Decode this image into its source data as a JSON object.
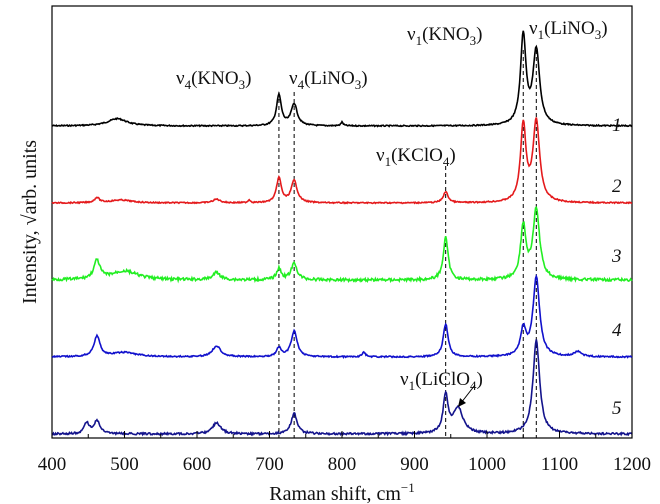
{
  "chart_data": {
    "type": "line",
    "xlabel": "Raman shift, cm",
    "xlabel_sup": "−1",
    "ylabel": "Intensity, √arb. units",
    "xlim": [
      400,
      1200
    ],
    "x_ticks": [
      400,
      500,
      600,
      700,
      800,
      900,
      1000,
      1100,
      1200
    ],
    "y_ticks": "none",
    "grid": false,
    "legend": "none",
    "reference_lines_x": [
      713,
      734,
      943,
      1050,
      1068
    ],
    "series": [
      {
        "name": "1",
        "color": "#000000",
        "offset": 4,
        "amp": 0.95,
        "wig": 0.6,
        "peaks": [
          [
            490,
            0.1,
            16
          ],
          [
            713,
            0.42,
            4
          ],
          [
            734,
            0.3,
            5
          ],
          [
            800,
            0.05,
            2
          ],
          [
            1050,
            1.22,
            4.5
          ],
          [
            1068,
            1.02,
            5.5
          ]
        ]
      },
      {
        "name": "2",
        "color": "#e41a1c",
        "offset": 3,
        "amp": 0.95,
        "wig": 0.6,
        "peaks": [
          [
            462,
            0.07,
            4
          ],
          [
            495,
            0.04,
            18
          ],
          [
            627,
            0.05,
            6
          ],
          [
            672,
            0.04,
            2
          ],
          [
            713,
            0.34,
            4
          ],
          [
            734,
            0.3,
            5
          ],
          [
            943,
            0.15,
            4
          ],
          [
            1050,
            1.05,
            4.5
          ],
          [
            1068,
            1.1,
            5.5
          ]
        ]
      },
      {
        "name": "3",
        "color": "#22ee22",
        "offset": 2,
        "amp": 0.95,
        "wig": 1.4,
        "peaks": [
          [
            462,
            0.25,
            5
          ],
          [
            500,
            0.12,
            22
          ],
          [
            627,
            0.1,
            6
          ],
          [
            713,
            0.15,
            4
          ],
          [
            734,
            0.22,
            5
          ],
          [
            943,
            0.58,
            4
          ],
          [
            1050,
            0.72,
            4.5
          ],
          [
            1068,
            0.95,
            5.5
          ]
        ]
      },
      {
        "name": "4",
        "color": "#1111cc",
        "offset": 1,
        "amp": 0.95,
        "wig": 0.7,
        "peaks": [
          [
            462,
            0.28,
            5
          ],
          [
            500,
            0.06,
            20
          ],
          [
            627,
            0.15,
            7
          ],
          [
            713,
            0.12,
            4
          ],
          [
            734,
            0.35,
            5
          ],
          [
            830,
            0.06,
            3
          ],
          [
            943,
            0.45,
            4
          ],
          [
            1050,
            0.36,
            4.5
          ],
          [
            1068,
            1.08,
            5.5
          ],
          [
            1125,
            0.07,
            6
          ]
        ]
      },
      {
        "name": "5",
        "color": "#14148c",
        "offset": 0,
        "amp": 0.95,
        "wig": 1.0,
        "peaks": [
          [
            448,
            0.15,
            4
          ],
          [
            462,
            0.18,
            5
          ],
          [
            627,
            0.15,
            7
          ],
          [
            734,
            0.28,
            5
          ],
          [
            943,
            0.52,
            4
          ],
          [
            960,
            0.35,
            8
          ],
          [
            1068,
            1.28,
            5.5
          ]
        ]
      }
    ],
    "annotations": [
      {
        "text": "ν",
        "sub": "4",
        "rest": "(KNO",
        "sub2": "3",
        "end": ")"
      },
      {
        "text": "ν",
        "sub": "4",
        "rest": "(LiNO",
        "sub2": "3",
        "end": ")"
      },
      {
        "text": "ν",
        "sub": "1",
        "rest": "(KNO",
        "sub2": "3",
        "end": ")"
      },
      {
        "text": "ν",
        "sub": "1",
        "rest": "(LiNO",
        "sub2": "3",
        "end": ")"
      },
      {
        "text": "ν",
        "sub": "1",
        "rest": "(KClO",
        "sub2": "4",
        "end": ")"
      },
      {
        "text": "ν",
        "sub": "1",
        "rest": "(LiClO",
        "sub2": "4",
        "end": ")"
      }
    ]
  }
}
